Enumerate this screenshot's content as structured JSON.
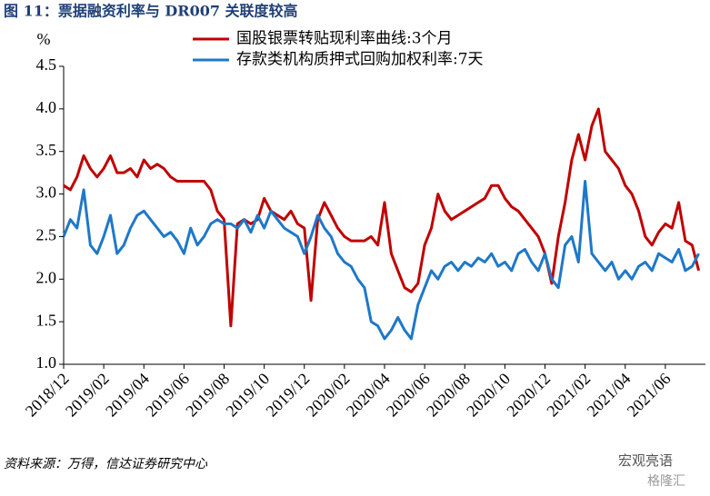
{
  "chart_data": {
    "type": "line",
    "title": "图 11：票据融资利率与 DR007 关联度较高",
    "y_unit": "%",
    "source": "资料来源：万得，信达证券研究中心",
    "watermark": [
      "宏观亮语",
      "格隆汇"
    ],
    "categories": [
      "2018/12",
      null,
      null,
      null,
      null,
      null,
      "2019/02",
      null,
      null,
      null,
      null,
      null,
      "2019/04",
      null,
      null,
      null,
      null,
      null,
      "2019/06",
      null,
      null,
      null,
      null,
      null,
      "2019/08",
      null,
      null,
      null,
      null,
      null,
      "2019/10",
      null,
      null,
      null,
      null,
      null,
      "2019/12",
      null,
      null,
      null,
      null,
      null,
      "2020/02",
      null,
      null,
      null,
      null,
      null,
      "2020/04",
      null,
      null,
      null,
      null,
      null,
      "2020/06",
      null,
      null,
      null,
      null,
      null,
      "2020/08",
      null,
      null,
      null,
      null,
      null,
      "2020/10",
      null,
      null,
      null,
      null,
      null,
      "2020/12",
      null,
      null,
      null,
      null,
      null,
      "2021/02",
      null,
      null,
      null,
      null,
      null,
      "2021/04",
      null,
      null,
      null,
      null,
      null,
      "2021/06",
      null,
      null,
      null,
      null,
      null
    ],
    "series": [
      {
        "name": "国股银票转贴现利率曲线:3个月",
        "color": "#c00000",
        "values": [
          3.1,
          3.05,
          3.2,
          3.45,
          3.3,
          3.2,
          3.3,
          3.45,
          3.25,
          3.25,
          3.3,
          3.2,
          3.4,
          3.3,
          3.35,
          3.3,
          3.2,
          3.15,
          3.15,
          3.15,
          3.15,
          3.15,
          3.05,
          2.8,
          2.7,
          1.45,
          2.65,
          2.7,
          2.65,
          2.7,
          2.95,
          2.8,
          2.75,
          2.7,
          2.8,
          2.65,
          2.6,
          1.75,
          2.7,
          2.9,
          2.75,
          2.6,
          2.5,
          2.45,
          2.45,
          2.45,
          2.5,
          2.4,
          2.9,
          2.3,
          2.1,
          1.9,
          1.85,
          1.95,
          2.4,
          2.6,
          3.0,
          2.8,
          2.7,
          2.75,
          2.8,
          2.85,
          2.9,
          2.95,
          3.1,
          3.1,
          2.95,
          2.85,
          2.8,
          2.7,
          2.6,
          2.5,
          2.3,
          1.95,
          2.5,
          2.9,
          3.4,
          3.7,
          3.4,
          3.8,
          4.0,
          3.5,
          3.4,
          3.3,
          3.1,
          3.0,
          2.8,
          2.5,
          2.4,
          2.55,
          2.65,
          2.6,
          2.9,
          2.45,
          2.4,
          2.1
        ]
      },
      {
        "name": "存款类机构质押式回购加权利率:7天",
        "color": "#1f78c8",
        "values": [
          2.5,
          2.7,
          2.6,
          3.05,
          2.4,
          2.3,
          2.5,
          2.75,
          2.3,
          2.4,
          2.6,
          2.75,
          2.8,
          2.7,
          2.6,
          2.5,
          2.55,
          2.45,
          2.3,
          2.6,
          2.4,
          2.5,
          2.65,
          2.7,
          2.65,
          2.65,
          2.6,
          2.7,
          2.55,
          2.75,
          2.6,
          2.8,
          2.7,
          2.6,
          2.55,
          2.5,
          2.3,
          2.5,
          2.75,
          2.6,
          2.5,
          2.3,
          2.2,
          2.15,
          2.0,
          1.9,
          1.5,
          1.45,
          1.3,
          1.4,
          1.55,
          1.4,
          1.3,
          1.7,
          1.9,
          2.1,
          2.0,
          2.15,
          2.2,
          2.1,
          2.2,
          2.15,
          2.25,
          2.2,
          2.3,
          2.15,
          2.2,
          2.1,
          2.3,
          2.35,
          2.2,
          2.1,
          2.3,
          2.0,
          1.9,
          2.4,
          2.5,
          2.2,
          3.15,
          2.3,
          2.2,
          2.1,
          2.2,
          2.0,
          2.1,
          2.0,
          2.15,
          2.2,
          2.1,
          2.3,
          2.25,
          2.2,
          2.35,
          2.1,
          2.15,
          2.3
        ]
      }
    ],
    "ylim": [
      1,
      4.5
    ],
    "yticks": [
      {
        "value": 1,
        "label": "1.0"
      },
      {
        "value": 1.5,
        "label": "1.5"
      },
      {
        "value": 2,
        "label": "2.0"
      },
      {
        "value": 2.5,
        "label": "2.5"
      },
      {
        "value": 3,
        "label": "3.0"
      },
      {
        "value": 3.5,
        "label": "3.5"
      },
      {
        "value": 4,
        "label": "4.0"
      },
      {
        "value": 4.5,
        "label": "4.5"
      }
    ],
    "grid": false
  }
}
